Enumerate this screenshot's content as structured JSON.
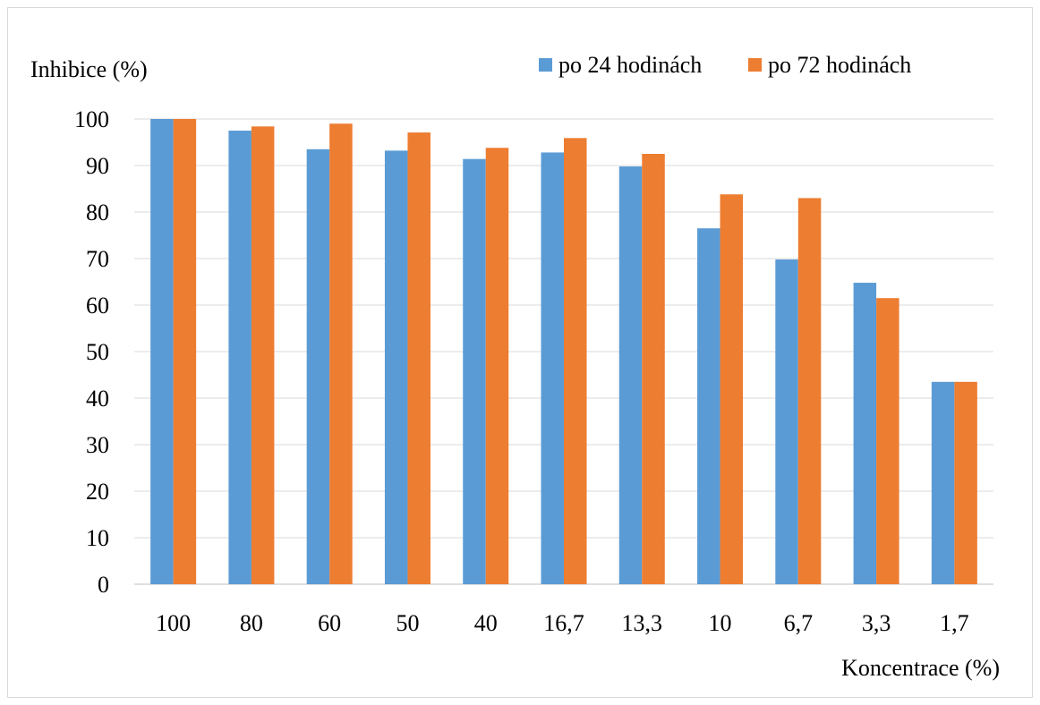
{
  "chart_data": {
    "type": "bar",
    "title": "",
    "ylabel": "Inhibice (%)",
    "xlabel": "Koncentrace (%)",
    "categories": [
      "100",
      "80",
      "60",
      "50",
      "40",
      "16,7",
      "13,3",
      "10",
      "6,7",
      "3,3",
      "1,7"
    ],
    "series": [
      {
        "name": "po 24 hodinách",
        "color": "#5b9bd5",
        "values": [
          100,
          97.5,
          93.5,
          93.2,
          91.4,
          92.8,
          89.8,
          76.5,
          69.8,
          64.8,
          43.5
        ]
      },
      {
        "name": "po 72 hodinách",
        "color": "#ed7d31",
        "values": [
          100,
          98.4,
          99.0,
          97.1,
          93.8,
          95.9,
          92.5,
          83.8,
          83.0,
          61.5,
          43.5
        ]
      }
    ],
    "ylim": [
      0,
      100
    ],
    "yticks": [
      0,
      10,
      20,
      30,
      40,
      50,
      60,
      70,
      80,
      90,
      100
    ],
    "grid": true,
    "legend_position": "top-right"
  }
}
